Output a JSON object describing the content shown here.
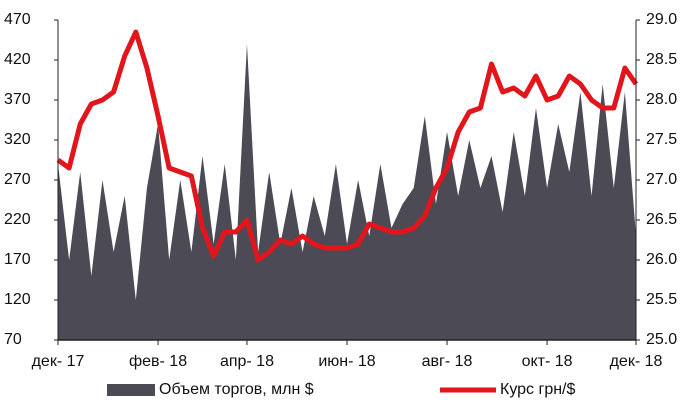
{
  "chart_data": {
    "type": "area-line",
    "categories": [
      "дек- 17",
      null,
      null,
      null,
      null,
      null,
      null,
      null,
      null,
      "фев- 18",
      null,
      null,
      null,
      null,
      null,
      null,
      null,
      "апр- 18",
      null,
      null,
      null,
      null,
      null,
      null,
      null,
      null,
      "июн- 18",
      null,
      null,
      null,
      null,
      null,
      null,
      null,
      null,
      "авг- 18",
      null,
      null,
      null,
      null,
      null,
      null,
      null,
      null,
      "окт- 18",
      null,
      null,
      null,
      null,
      null,
      null,
      null,
      "дек- 18"
    ],
    "series": [
      {
        "name": "Объем торгов, млн $",
        "type": "area",
        "color": "#4b4a55",
        "values": [
          290,
          170,
          280,
          150,
          270,
          180,
          250,
          120,
          260,
          340,
          170,
          270,
          180,
          300,
          190,
          290,
          170,
          440,
          180,
          280,
          190,
          260,
          180,
          250,
          200,
          290,
          190,
          270,
          200,
          290,
          210,
          240,
          260,
          350,
          240,
          330,
          250,
          320,
          260,
          300,
          230,
          330,
          250,
          360,
          260,
          340,
          280,
          380,
          250,
          390,
          260,
          380,
          200
        ]
      },
      {
        "name": "Курс грн/$",
        "type": "line",
        "axis": "y2",
        "color": "#e3151c",
        "values": [
          27.25,
          27.15,
          27.7,
          27.95,
          28.0,
          28.1,
          28.55,
          28.85,
          28.4,
          27.8,
          27.15,
          27.1,
          27.05,
          26.4,
          26.05,
          26.35,
          26.35,
          26.5,
          26.0,
          26.1,
          26.25,
          26.2,
          26.3,
          26.2,
          26.15,
          26.15,
          26.15,
          26.2,
          26.45,
          26.4,
          26.35,
          26.35,
          26.4,
          26.55,
          26.9,
          27.15,
          27.6,
          27.85,
          27.9,
          28.45,
          28.1,
          28.15,
          28.05,
          28.3,
          28.0,
          28.05,
          28.3,
          28.2,
          28.0,
          27.9,
          27.9,
          28.4,
          28.2
        ]
      }
    ],
    "ylim": [
      70,
      470
    ],
    "yticks": [
      70,
      120,
      170,
      220,
      270,
      320,
      370,
      420,
      470
    ],
    "y2lim": [
      25,
      29
    ],
    "y2ticks": [
      {
        "value": 25,
        "label": "25.0"
      },
      {
        "value": 25.5,
        "label": "25.5"
      },
      {
        "value": 26,
        "label": "26.0"
      },
      {
        "value": 26.5,
        "label": "26.5"
      },
      {
        "value": 27,
        "label": "27.0"
      },
      {
        "value": 27.5,
        "label": "27.5"
      },
      {
        "value": 28,
        "label": "28.0"
      },
      {
        "value": 28.5,
        "label": "28.5"
      },
      {
        "value": 29,
        "label": "29.0"
      }
    ],
    "legend": "bottom",
    "grid": false
  }
}
